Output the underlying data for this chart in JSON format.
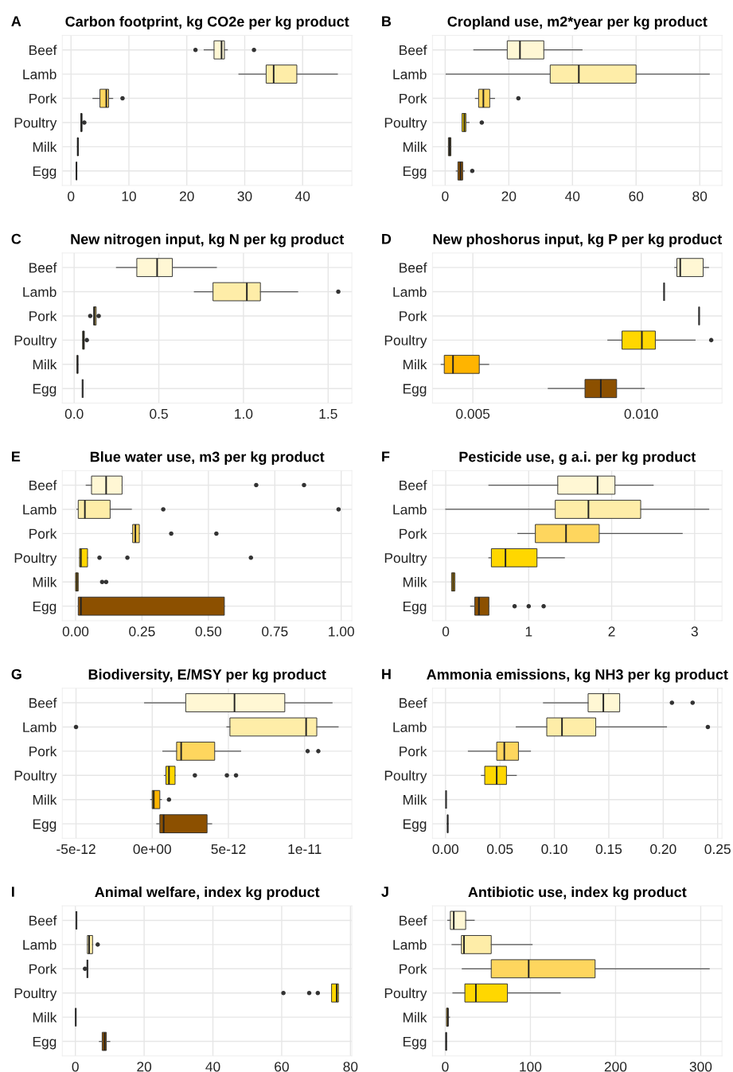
{
  "chart_data": [
    {
      "type": "box",
      "orientation": "horizontal",
      "grid": true,
      "title": "Carbon footprint, kg CO2e per kg product",
      "annotations": [
        "A"
      ],
      "categories": [
        "Beef",
        "Lamb",
        "Pork",
        "Poultry",
        "Milk",
        "Egg"
      ],
      "colors": [
        "#fff7d4",
        "#feeda8",
        "#fed65e",
        "#ffd700",
        "#ffb400",
        "#8c5000"
      ],
      "boxes": [
        {
          "low": 23,
          "q1": 24.7,
          "median": 26,
          "q3": 26.5,
          "high": 27,
          "outliers": [
            21.5,
            31.6
          ]
        },
        {
          "low": 29,
          "q1": 33.7,
          "median": 35,
          "q3": 39,
          "high": 46
        },
        {
          "low": 3.8,
          "q1": 5,
          "median": 6.1,
          "q3": 6.5,
          "high": 7.2,
          "outliers": [
            8.9
          ]
        },
        {
          "low": 1.7,
          "q1": 1.7,
          "median": 1.8,
          "q3": 1.9,
          "high": 2.0,
          "outliers": [
            2.3
          ]
        },
        {
          "low": 1.1,
          "q1": 1.1,
          "median": 1.2,
          "q3": 1.25,
          "high": 1.25
        },
        {
          "low": 0.9,
          "q1": 0.93,
          "median": 0.95,
          "q3": 0.97,
          "high": 1.0
        }
      ],
      "xlim": [
        -1.5,
        48.5
      ],
      "xticks": [
        0,
        10,
        20,
        30,
        40
      ]
    },
    {
      "type": "box",
      "orientation": "horizontal",
      "grid": true,
      "title": "Cropland use, m2*year per kg product",
      "annotations": [
        "B"
      ],
      "categories": [
        "Beef",
        "Lamb",
        "Pork",
        "Poultry",
        "Milk",
        "Egg"
      ],
      "colors": [
        "#fff7d4",
        "#feeda8",
        "#fed65e",
        "#ffd700",
        "#ffb400",
        "#8c5000"
      ],
      "boxes": [
        {
          "low": 9,
          "q1": 19.5,
          "median": 23.5,
          "q3": 31,
          "high": 43
        },
        {
          "low": 0.3,
          "q1": 33,
          "median": 42,
          "q3": 60,
          "high": 83
        },
        {
          "low": 9.5,
          "q1": 10.5,
          "median": 12,
          "q3": 14,
          "high": 15.5,
          "outliers": [
            23
          ]
        },
        {
          "low": 5.3,
          "q1": 5.3,
          "median": 6,
          "q3": 6.5,
          "high": 7.5,
          "outliers": [
            11.5
          ]
        },
        {
          "low": 1,
          "q1": 1,
          "median": 1.4,
          "q3": 1.8,
          "high": 1.8
        },
        {
          "low": 3.5,
          "q1": 4,
          "median": 4.8,
          "q3": 5.5,
          "high": 6,
          "outliers": [
            8.5
          ]
        }
      ],
      "xlim": [
        -4,
        87
      ],
      "xticks": [
        0,
        20,
        40,
        60,
        80
      ]
    },
    {
      "type": "box",
      "orientation": "horizontal",
      "grid": true,
      "title": "New nitrogen input, kg N per kg product",
      "annotations": [
        "C"
      ],
      "categories": [
        "Beef",
        "Lamb",
        "Pork",
        "Poultry",
        "Milk",
        "Egg"
      ],
      "colors": [
        "#fff7d4",
        "#feeda8",
        "#fed65e",
        "#ffd700",
        "#ffb400",
        "#333333"
      ],
      "boxes": [
        {
          "low": 0.25,
          "q1": 0.37,
          "median": 0.49,
          "q3": 0.58,
          "high": 0.84
        },
        {
          "low": 0.71,
          "q1": 0.82,
          "median": 1.02,
          "q3": 1.1,
          "high": 1.32,
          "outliers": [
            1.56
          ]
        },
        {
          "low": 0.115,
          "q1": 0.115,
          "median": 0.12,
          "q3": 0.13,
          "high": 0.13,
          "outliers": [
            0.095,
            0.145
          ]
        },
        {
          "low": 0.05,
          "q1": 0.05,
          "median": 0.055,
          "q3": 0.06,
          "high": 0.06,
          "outliers": [
            0.075
          ]
        },
        {
          "low": 0.017,
          "q1": 0.017,
          "median": 0.02,
          "q3": 0.022,
          "high": 0.022
        },
        {
          "low": 0.05,
          "q1": 0.05,
          "median": 0.05,
          "q3": 0.05,
          "high": 0.05
        }
      ],
      "xlim": [
        -0.07,
        1.64
      ],
      "xticks": [
        {
          "value": 0,
          "label": "0.0"
        },
        0.5,
        {
          "value": 1,
          "label": "1.0"
        },
        1.5
      ]
    },
    {
      "type": "box",
      "orientation": "horizontal",
      "grid": true,
      "title": "New phoshorus input, kg P per kg product",
      "annotations": [
        "D"
      ],
      "categories": [
        "Beef",
        "Lamb",
        "Pork",
        "Poultry",
        "Milk",
        "Egg"
      ],
      "colors": [
        "#fff7d4",
        "#333333",
        "#333333",
        "#ffd700",
        "#ffb400",
        "#8c5000"
      ],
      "boxes": [
        {
          "low": 0.011,
          "q1": 0.01106,
          "median": 0.01116,
          "q3": 0.01184,
          "high": 0.012
        },
        {
          "low": 0.01068,
          "q1": 0.01068,
          "median": 0.01068,
          "q3": 0.01068,
          "high": 0.01068
        },
        {
          "low": 0.01172,
          "q1": 0.01172,
          "median": 0.01172,
          "q3": 0.01172,
          "high": 0.01172
        },
        {
          "low": 0.00901,
          "q1": 0.00943,
          "median": 0.01002,
          "q3": 0.01042,
          "high": 0.0116,
          "outliers": [
            0.01208
          ]
        },
        {
          "low": 0.00406,
          "q1": 0.00415,
          "median": 0.00441,
          "q3": 0.00519,
          "high": 0.00547
        },
        {
          "low": 0.00724,
          "q1": 0.00833,
          "median": 0.0088,
          "q3": 0.00927,
          "high": 0.01009
        }
      ],
      "xlim": [
        0.0038,
        0.0124
      ],
      "xticks": [
        0.005,
        {
          "value": 0.01,
          "label": "0.010"
        }
      ]
    },
    {
      "type": "box",
      "orientation": "horizontal",
      "grid": true,
      "title": "Blue water use, m3 per kg product",
      "annotations": [
        "E"
      ],
      "categories": [
        "Beef",
        "Lamb",
        "Pork",
        "Poultry",
        "Milk",
        "Egg"
      ],
      "colors": [
        "#fff7d4",
        "#feeda8",
        "#fed65e",
        "#ffd700",
        "#ffb400",
        "#8c5000"
      ],
      "boxes": [
        {
          "low": 0.04,
          "q1": 0.06,
          "median": 0.115,
          "q3": 0.175,
          "high": 0.175,
          "outliers": [
            0.68,
            0.86
          ]
        },
        {
          "low": 0.005,
          "q1": 0.01,
          "median": 0.035,
          "q3": 0.13,
          "high": 0.21,
          "outliers": [
            0.33,
            0.99
          ]
        },
        {
          "low": 0.21,
          "q1": 0.215,
          "median": 0.225,
          "q3": 0.24,
          "high": 0.24,
          "outliers": [
            0.36,
            0.53
          ]
        },
        {
          "low": 0.015,
          "q1": 0.015,
          "median": 0.02,
          "q3": 0.045,
          "high": 0.045,
          "outliers": [
            0.09,
            0.195,
            0.66
          ]
        },
        {
          "low": 0.0,
          "q1": 0.0,
          "median": 0.005,
          "q3": 0.01,
          "high": 0.01,
          "outliers": [
            0.1,
            0.115
          ]
        },
        {
          "low": 0.01,
          "q1": 0.01,
          "median": 0.02,
          "q3": 0.56,
          "high": 0.56
        }
      ],
      "xlim": [
        -0.05,
        1.04
      ],
      "xticks": [
        {
          "value": 0,
          "label": "0.00"
        },
        0.25,
        {
          "value": 0.5,
          "label": "0.50"
        },
        0.75,
        {
          "value": 1,
          "label": "1.00"
        }
      ]
    },
    {
      "type": "box",
      "orientation": "horizontal",
      "grid": true,
      "title": "Pesticide use, g a.i. per kg product",
      "annotations": [
        "F"
      ],
      "categories": [
        "Beef",
        "Lamb",
        "Pork",
        "Poultry",
        "Milk",
        "Egg"
      ],
      "colors": [
        "#fff7d4",
        "#feeda8",
        "#fed65e",
        "#ffd700",
        "#ffb400",
        "#8c5000"
      ],
      "boxes": [
        {
          "low": 0.52,
          "q1": 1.35,
          "median": 1.83,
          "q3": 2.04,
          "high": 2.5
        },
        {
          "low": 0.0,
          "q1": 1.32,
          "median": 1.72,
          "q3": 2.35,
          "high": 3.17
        },
        {
          "low": 0.87,
          "q1": 1.08,
          "median": 1.45,
          "q3": 1.85,
          "high": 2.85
        },
        {
          "low": 0.52,
          "q1": 0.55,
          "median": 0.72,
          "q3": 1.1,
          "high": 1.43
        },
        {
          "low": 0.07,
          "q1": 0.07,
          "median": 0.09,
          "q3": 0.11,
          "high": 0.11
        },
        {
          "low": 0.3,
          "q1": 0.35,
          "median": 0.4,
          "q3": 0.52,
          "high": 0.52,
          "outliers": [
            0.83,
            1.0,
            1.18
          ]
        }
      ],
      "xlim": [
        -0.16,
        3.33
      ],
      "xticks": [
        0,
        1,
        2,
        3
      ]
    },
    {
      "type": "box",
      "orientation": "horizontal",
      "grid": true,
      "title": "Biodiversity, E/MSY per kg product",
      "annotations": [
        "G"
      ],
      "categories": [
        "Beef",
        "Lamb",
        "Pork",
        "Poultry",
        "Milk",
        "Egg"
      ],
      "colors": [
        "#fff7d4",
        "#feeda8",
        "#fed65e",
        "#ffd700",
        "#ffb400",
        "#8c5000"
      ],
      "boxes": [
        {
          "low": -5e-13,
          "q1": 2.2e-12,
          "median": 5.4e-12,
          "q3": 8.7e-12,
          "high": 1.18e-11
        },
        {
          "low": 4.9e-12,
          "q1": 5.1e-12,
          "median": 1.01e-11,
          "q3": 1.08e-11,
          "high": 1.22e-11,
          "outliers": [
            -5e-12
          ]
        },
        {
          "low": 7e-13,
          "q1": 1.6e-12,
          "median": 1.9e-12,
          "q3": 4.1e-12,
          "high": 5.8e-12,
          "outliers": [
            1.02e-11,
            1.09e-11
          ]
        },
        {
          "low": 8e-13,
          "q1": 9e-13,
          "median": 1.1e-12,
          "q3": 1.5e-12,
          "high": 1.5e-12,
          "outliers": [
            2.8e-12,
            4.9e-12,
            5.5e-12
          ]
        },
        {
          "low": -1e-13,
          "q1": 0.0,
          "median": 1e-13,
          "q3": 5e-13,
          "high": 6e-13,
          "outliers": [
            1.1e-12
          ]
        },
        {
          "low": 3e-13,
          "q1": 5e-13,
          "median": 7.5e-13,
          "q3": 3.6e-12,
          "high": 3.9e-12
        }
      ],
      "xlim": [
        -5.9e-12,
        1.31e-11
      ],
      "xticks": [
        {
          "value": -5e-12,
          "label": "-5e-12"
        },
        {
          "value": 0,
          "label": "0e+00"
        },
        {
          "value": 5e-12,
          "label": "5e-12"
        },
        {
          "value": 1e-11,
          "label": "1e-11"
        }
      ]
    },
    {
      "type": "box",
      "orientation": "horizontal",
      "grid": true,
      "title": "Ammonia emissions, kg NH3 per kg product",
      "annotations": [
        "H"
      ],
      "categories": [
        "Beef",
        "Lamb",
        "Pork",
        "Poultry",
        "Milk",
        "Egg"
      ],
      "colors": [
        "#fff7d4",
        "#feeda8",
        "#fed65e",
        "#ffd700",
        "#333333",
        "#8c5000"
      ],
      "boxes": [
        {
          "low": 0.09,
          "q1": 0.131,
          "median": 0.145,
          "q3": 0.16,
          "high": 0.16,
          "outliers": [
            0.208,
            0.227
          ]
        },
        {
          "low": 0.065,
          "q1": 0.093,
          "median": 0.107,
          "q3": 0.138,
          "high": 0.203,
          "outliers": [
            0.241
          ]
        },
        {
          "low": 0.021,
          "q1": 0.047,
          "median": 0.054,
          "q3": 0.067,
          "high": 0.078
        },
        {
          "low": 0.033,
          "q1": 0.036,
          "median": 0.047,
          "q3": 0.056,
          "high": 0.065
        },
        {
          "low": 0.0005,
          "q1": 0.0005,
          "median": 0.0005,
          "q3": 0.0005,
          "high": 0.0005
        },
        {
          "low": 0.0015,
          "q1": 0.0018,
          "median": 0.002,
          "q3": 0.0022,
          "high": 0.0025
        }
      ],
      "xlim": [
        -0.012,
        0.254
      ],
      "xticks": [
        {
          "value": 0,
          "label": "0.00"
        },
        0.05,
        {
          "value": 0.1,
          "label": "0.10"
        },
        0.15,
        {
          "value": 0.2,
          "label": "0.20"
        },
        0.25
      ]
    },
    {
      "type": "box",
      "orientation": "horizontal",
      "grid": true,
      "title": "Animal welfare, index kg product",
      "annotations": [
        "I"
      ],
      "categories": [
        "Beef",
        "Lamb",
        "Pork",
        "Poultry",
        "Milk",
        "Egg"
      ],
      "colors": [
        "#333333",
        "#feeda8",
        "#333333",
        "#ffd700",
        "#333333",
        "#8c5000"
      ],
      "boxes": [
        {
          "low": 0.3,
          "q1": 0.3,
          "median": 0.3,
          "q3": 0.3,
          "high": 0.3
        },
        {
          "low": 3.5,
          "q1": 3.5,
          "median": 4,
          "q3": 5,
          "high": 5,
          "outliers": [
            6.5
          ]
        },
        {
          "low": 3.5,
          "q1": 3.5,
          "median": 3.5,
          "q3": 3.5,
          "high": 3.5,
          "outliers": [
            2.8
          ]
        },
        {
          "low": 74.5,
          "q1": 74.5,
          "median": 76,
          "q3": 76.5,
          "high": 76.5,
          "outliers": [
            60.5,
            68,
            70.5
          ]
        },
        {
          "low": 0.1,
          "q1": 0.1,
          "median": 0.1,
          "q3": 0.1,
          "high": 0.1
        },
        {
          "low": 7,
          "q1": 7.8,
          "median": 8.5,
          "q3": 9,
          "high": 10
        }
      ],
      "xlim": [
        -3.8,
        80.4
      ],
      "xticks": [
        0,
        20,
        40,
        60,
        80
      ]
    },
    {
      "type": "box",
      "orientation": "horizontal",
      "grid": true,
      "title": "Antibiotic use, index kg product",
      "annotations": [
        "J"
      ],
      "categories": [
        "Beef",
        "Lamb",
        "Pork",
        "Poultry",
        "Milk",
        "Egg"
      ],
      "colors": [
        "#fff7d4",
        "#feeda8",
        "#fed65e",
        "#ffd700",
        "#ffb400",
        "#8c5000"
      ],
      "boxes": [
        {
          "low": 3,
          "q1": 6,
          "median": 10,
          "q3": 24,
          "high": 34
        },
        {
          "low": 8,
          "q1": 19,
          "median": 22,
          "q3": 54,
          "high": 102
        },
        {
          "low": 20,
          "q1": 54,
          "median": 98,
          "q3": 176,
          "high": 310
        },
        {
          "low": 9,
          "q1": 23,
          "median": 36,
          "q3": 73,
          "high": 135
        },
        {
          "low": 1.5,
          "q1": 1.5,
          "median": 3,
          "q3": 3.5,
          "high": 5
        },
        {
          "low": 0.8,
          "q1": 0.8,
          "median": 1,
          "q3": 1.5,
          "high": 1.5
        }
      ],
      "xlim": [
        -15,
        325
      ],
      "xticks": [
        0,
        100,
        200,
        300
      ]
    }
  ]
}
